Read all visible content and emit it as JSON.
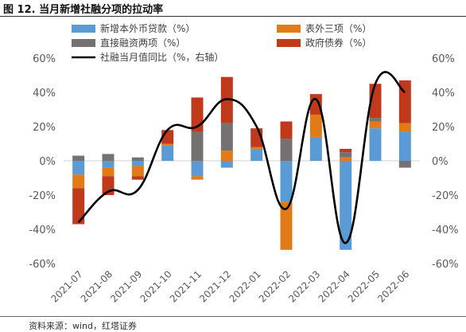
{
  "figure": {
    "title": "图 12. 当月新增社融分项的拉动率",
    "source": "资料来源：wind，红塔证券"
  },
  "chart_data": {
    "type": "bar",
    "stacked": true,
    "categories": [
      "2021-07",
      "2021-08",
      "2021-09",
      "2021-10",
      "2021-11",
      "2021-12",
      "2022-01",
      "2022-02",
      "2022-03",
      "2022-04",
      "2022-05",
      "2022-06"
    ],
    "series": [
      {
        "name": "新增本外币贷款（%）",
        "color": "#5b9bd5",
        "axis": "left",
        "values": [
          -8,
          -4,
          -3,
          9,
          -9,
          -4,
          7,
          -24,
          14,
          -52,
          19,
          17
        ]
      },
      {
        "name": "表外三项（%）",
        "color": "#e07b18",
        "axis": "left",
        "values": [
          -8,
          -5,
          -6,
          1,
          -2,
          6,
          1,
          -28,
          13,
          2,
          4,
          5
        ]
      },
      {
        "name": "直接融资两项（%）",
        "color": "#767171",
        "axis": "left",
        "values": [
          3,
          4,
          2,
          0,
          17,
          16,
          0,
          13,
          0,
          3,
          2,
          -4
        ]
      },
      {
        "name": "政府债券（%）",
        "color": "#c0391b",
        "axis": "left",
        "values": [
          -21,
          -11,
          -2,
          8,
          20,
          27,
          11,
          10,
          12,
          2,
          20,
          25
        ]
      },
      {
        "name": "社融当月值同比（%，右轴）",
        "color": "#000000",
        "type": "line",
        "axis": "right",
        "values": [
          -36,
          -18,
          -17,
          18,
          20,
          36,
          20,
          -28,
          36,
          -48,
          45,
          40
        ]
      }
    ],
    "y_left": {
      "min": -60,
      "max": 60,
      "ticks": [
        "-60%",
        "-40%",
        "-20%",
        "0%",
        "20%",
        "40%",
        "60%"
      ]
    },
    "y_right": {
      "min": -60,
      "max": 60,
      "ticks": [
        "-60%",
        "-40%",
        "-20%",
        "0%",
        "20%",
        "40%",
        "60%"
      ]
    },
    "legend_position": "top",
    "grid": false
  }
}
